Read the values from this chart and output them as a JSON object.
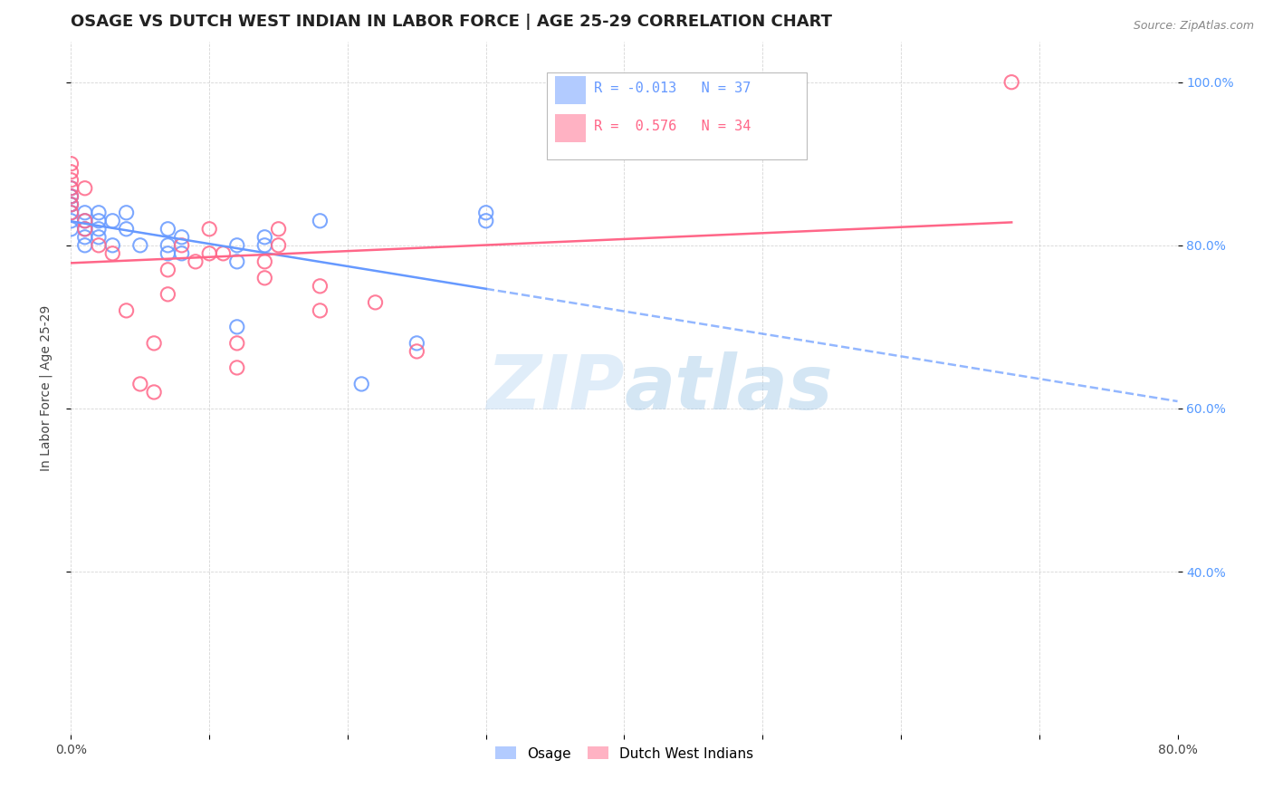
{
  "title": "OSAGE VS DUTCH WEST INDIAN IN LABOR FORCE | AGE 25-29 CORRELATION CHART",
  "source_text": "Source: ZipAtlas.com",
  "ylabel": "In Labor Force | Age 25-29",
  "xlim": [
    0.0,
    0.8
  ],
  "ylim": [
    0.2,
    1.05
  ],
  "xtick_positions": [
    0.0,
    0.1,
    0.2,
    0.3,
    0.4,
    0.5,
    0.6,
    0.7,
    0.8
  ],
  "xticklabels": [
    "0.0%",
    "",
    "",
    "",
    "",
    "",
    "",
    "",
    "80.0%"
  ],
  "ytick_positions": [
    0.4,
    0.6,
    0.8,
    1.0
  ],
  "yticklabels": [
    "40.0%",
    "60.0%",
    "80.0%",
    "100.0%"
  ],
  "watermark_zip": "ZIP",
  "watermark_atlas": "atlas",
  "legend_r1": "R = -0.013",
  "legend_n1": "N = 37",
  "legend_r2": "R =  0.576",
  "legend_n2": "N = 34",
  "osage_color": "#6699ff",
  "dutch_color": "#ff6688",
  "osage_x": [
    0.0,
    0.0,
    0.0,
    0.0,
    0.0,
    0.0,
    0.0,
    0.0,
    0.01,
    0.01,
    0.01,
    0.01,
    0.01,
    0.02,
    0.02,
    0.02,
    0.02,
    0.03,
    0.03,
    0.04,
    0.04,
    0.05,
    0.07,
    0.07,
    0.07,
    0.08,
    0.08,
    0.12,
    0.12,
    0.12,
    0.14,
    0.14,
    0.18,
    0.21,
    0.25,
    0.3,
    0.3
  ],
  "osage_y": [
    0.82,
    0.83,
    0.84,
    0.85,
    0.85,
    0.86,
    0.86,
    0.87,
    0.8,
    0.81,
    0.82,
    0.83,
    0.84,
    0.81,
    0.82,
    0.83,
    0.84,
    0.8,
    0.83,
    0.82,
    0.84,
    0.8,
    0.79,
    0.8,
    0.82,
    0.79,
    0.81,
    0.7,
    0.78,
    0.8,
    0.8,
    0.81,
    0.83,
    0.63,
    0.68,
    0.83,
    0.84
  ],
  "dutch_x": [
    0.0,
    0.0,
    0.0,
    0.0,
    0.0,
    0.0,
    0.0,
    0.01,
    0.01,
    0.01,
    0.02,
    0.03,
    0.04,
    0.05,
    0.06,
    0.06,
    0.07,
    0.07,
    0.08,
    0.09,
    0.1,
    0.1,
    0.11,
    0.12,
    0.12,
    0.14,
    0.14,
    0.15,
    0.15,
    0.18,
    0.18,
    0.22,
    0.25,
    0.68
  ],
  "dutch_y": [
    0.84,
    0.85,
    0.86,
    0.87,
    0.88,
    0.89,
    0.9,
    0.82,
    0.83,
    0.87,
    0.8,
    0.79,
    0.72,
    0.63,
    0.62,
    0.68,
    0.74,
    0.77,
    0.8,
    0.78,
    0.79,
    0.82,
    0.79,
    0.65,
    0.68,
    0.76,
    0.78,
    0.8,
    0.82,
    0.72,
    0.75,
    0.73,
    0.67,
    1.0
  ],
  "background_color": "#ffffff",
  "grid_color": "#cccccc",
  "title_fontsize": 13,
  "axis_fontsize": 10,
  "tick_fontsize": 10,
  "legend_fontsize": 11
}
